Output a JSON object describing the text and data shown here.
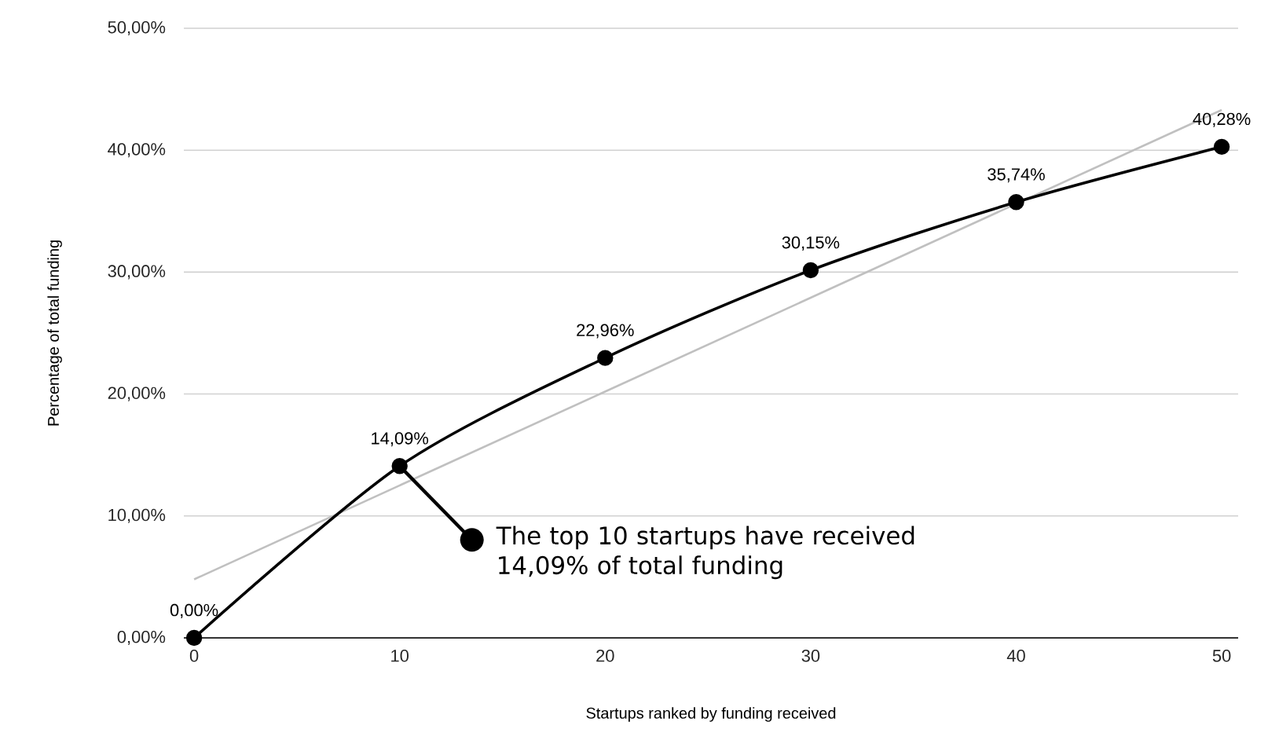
{
  "chart_data": {
    "type": "line",
    "xlabel": "Startups ranked by funding received",
    "ylabel": "Percentage of total funding",
    "x": [
      0,
      10,
      20,
      30,
      40,
      50
    ],
    "series": [
      {
        "color": "#000000",
        "values": [
          0,
          14.09,
          22.96,
          30.15,
          35.74,
          40.28
        ],
        "value_labels": [
          "0,00%",
          "14,09%",
          "22,96%",
          "30,15%",
          "35,74%",
          "40,28%"
        ]
      },
      {
        "type": "line",
        "x": [
          0,
          50
        ],
        "values": [
          4.8,
          43.3
        ],
        "color": "#c0c0c0",
        "marker": "none"
      }
    ],
    "xlim": [
      -0.5,
      50.8
    ],
    "ylim": [
      0,
      50
    ],
    "xticks": [
      0,
      10,
      20,
      30,
      40,
      50
    ],
    "yticks": [
      {
        "value": 0,
        "label": "0,00%"
      },
      {
        "value": 10,
        "label": "10,00%"
      },
      {
        "value": 20,
        "label": "20,00%"
      },
      {
        "value": 30,
        "label": "30,00%"
      },
      {
        "value": 40,
        "label": "40,00%"
      },
      {
        "value": 50,
        "label": "50,00%"
      }
    ],
    "grid": "y",
    "marker": "circle",
    "annotations": [
      {
        "text": "The top 10 startups have received 14,09% of total funding",
        "x": 10,
        "y": 14.09
      }
    ]
  }
}
